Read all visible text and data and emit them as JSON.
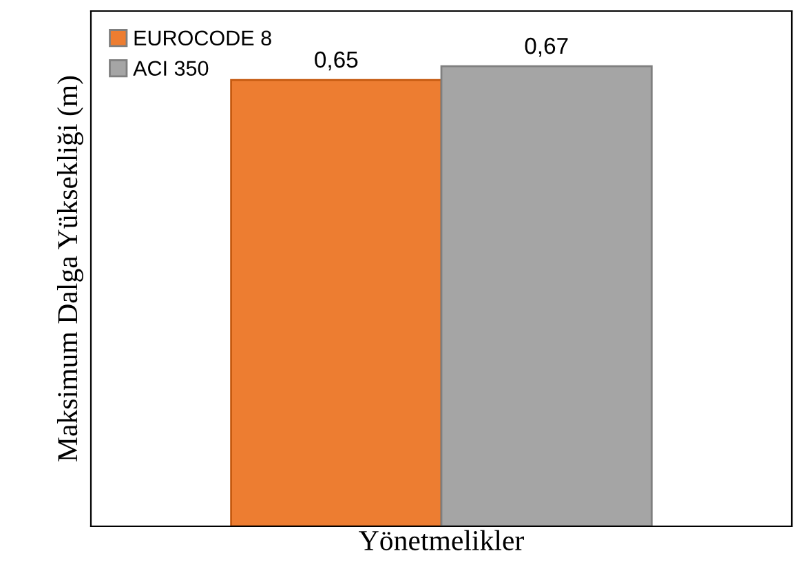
{
  "chart_data": {
    "type": "bar",
    "xlabel": "Yönetmelikler",
    "ylabel": "Maksimum Dalga Yüksekliği (m)",
    "categories": [
      null
    ],
    "series": [
      {
        "name": "EUROCODE 8",
        "color": "#ed7d31",
        "values": [
          0.65
        ],
        "value_labels": [
          "0,65"
        ]
      },
      {
        "name": "ACI 350",
        "color": "#a5a5a5",
        "values": [
          0.67
        ],
        "value_labels": [
          "0,67"
        ]
      }
    ],
    "legend": "top left",
    "grid": false,
    "tick_labels": false
  }
}
